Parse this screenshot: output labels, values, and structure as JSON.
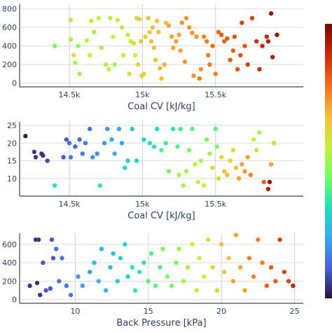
{
  "colorscale": [
    "#30123b",
    "#4662d7",
    "#36aaf9",
    "#1ae4b6",
    "#72fe5e",
    "#c8ef34",
    "#faba39",
    "#f66b19",
    "#ca2a04",
    "#7a0403"
  ],
  "chart_data": [
    {
      "type": "scatter",
      "xlabel": "Coal CV [kJ/kg]",
      "ylabel": "",
      "xlim": [
        14160,
        16100
      ],
      "ylim": [
        -40,
        850
      ],
      "xticks": [
        14500,
        15000,
        15500
      ],
      "xtick_labels": [
        "14.5k",
        "15k",
        "15.5k"
      ],
      "yticks": [
        0,
        200,
        400,
        600,
        800
      ],
      "ytick_labels": [
        "0",
        "200",
        "400",
        "600",
        "800"
      ],
      "grid": true,
      "points": [
        [
          14400,
          400,
          0.45
        ],
        [
          14510,
          680,
          0.52
        ],
        [
          14510,
          470,
          0.5
        ],
        [
          14530,
          300,
          0.55
        ],
        [
          14540,
          220,
          0.5
        ],
        [
          14560,
          400,
          0.48
        ],
        [
          14570,
          100,
          0.5
        ],
        [
          14620,
          460,
          0.55
        ],
        [
          14640,
          300,
          0.55
        ],
        [
          14650,
          670,
          0.55
        ],
        [
          14670,
          550,
          0.5
        ],
        [
          14700,
          700,
          0.55
        ],
        [
          14720,
          380,
          0.52
        ],
        [
          14750,
          200,
          0.5
        ],
        [
          14770,
          150,
          0.55
        ],
        [
          14780,
          700,
          0.52
        ],
        [
          14800,
          500,
          0.55
        ],
        [
          14810,
          200,
          0.5
        ],
        [
          14830,
          680,
          0.55
        ],
        [
          14860,
          600,
          0.58
        ],
        [
          14870,
          300,
          0.55
        ],
        [
          14900,
          520,
          0.55
        ],
        [
          14910,
          100,
          0.58
        ],
        [
          14920,
          450,
          0.55
        ],
        [
          14940,
          430,
          0.58
        ],
        [
          14950,
          300,
          0.55
        ],
        [
          14960,
          700,
          0.6
        ],
        [
          14970,
          200,
          0.6
        ],
        [
          14980,
          690,
          0.62
        ],
        [
          14990,
          450,
          0.62
        ],
        [
          14995,
          80,
          0.62
        ],
        [
          15010,
          100,
          0.62
        ],
        [
          15020,
          500,
          0.62
        ],
        [
          15040,
          700,
          0.65
        ],
        [
          15050,
          550,
          0.65
        ],
        [
          15060,
          450,
          0.65
        ],
        [
          15070,
          600,
          0.65
        ],
        [
          15080,
          380,
          0.65
        ],
        [
          15090,
          250,
          0.65
        ],
        [
          15100,
          670,
          0.65
        ],
        [
          15110,
          550,
          0.66
        ],
        [
          15120,
          160,
          0.66
        ],
        [
          15130,
          50,
          0.66
        ],
        [
          15150,
          200,
          0.68
        ],
        [
          15160,
          650,
          0.66
        ],
        [
          15180,
          620,
          0.7
        ],
        [
          15200,
          500,
          0.7
        ],
        [
          15210,
          380,
          0.7
        ],
        [
          15230,
          450,
          0.7
        ],
        [
          15250,
          520,
          0.7
        ],
        [
          15260,
          350,
          0.7
        ],
        [
          15270,
          650,
          0.72
        ],
        [
          15290,
          230,
          0.72
        ],
        [
          15300,
          700,
          0.72
        ],
        [
          15320,
          600,
          0.72
        ],
        [
          15340,
          540,
          0.72
        ],
        [
          15350,
          80,
          0.72
        ],
        [
          15370,
          500,
          0.72
        ],
        [
          15390,
          50,
          0.75
        ],
        [
          15400,
          150,
          0.72
        ],
        [
          15420,
          500,
          0.75
        ],
        [
          15440,
          450,
          0.75
        ],
        [
          15450,
          300,
          0.75
        ],
        [
          15460,
          200,
          0.75
        ],
        [
          15480,
          400,
          0.78
        ],
        [
          15500,
          100,
          0.75
        ],
        [
          15520,
          550,
          0.78
        ],
        [
          15540,
          520,
          0.8
        ],
        [
          15560,
          450,
          0.8
        ],
        [
          15580,
          480,
          0.8
        ],
        [
          15600,
          250,
          0.8
        ],
        [
          15620,
          350,
          0.8
        ],
        [
          15630,
          500,
          0.82
        ],
        [
          15650,
          150,
          0.82
        ],
        [
          15670,
          300,
          0.82
        ],
        [
          15680,
          650,
          0.85
        ],
        [
          15700,
          400,
          0.82
        ],
        [
          15720,
          200,
          0.85
        ],
        [
          15750,
          700,
          0.85
        ],
        [
          15780,
          450,
          0.88
        ],
        [
          15800,
          150,
          0.88
        ],
        [
          15820,
          400,
          0.9
        ],
        [
          15850,
          500,
          0.9
        ],
        [
          15860,
          450,
          0.92
        ],
        [
          15880,
          750,
          0.95
        ],
        [
          15890,
          280,
          0.92
        ],
        [
          15920,
          520,
          0.95
        ]
      ]
    },
    {
      "type": "scatter",
      "xlabel": "Coal CV [kJ/kg]",
      "ylabel": "",
      "xlim": [
        14160,
        16100
      ],
      "ylim": [
        5,
        26
      ],
      "xticks": [
        14500,
        15000,
        15500
      ],
      "xtick_labels": [
        "14.5k",
        "15k",
        "15.5k"
      ],
      "yticks": [
        10,
        15,
        20,
        25
      ],
      "ytick_labels": [
        "10",
        "15",
        "20",
        "25"
      ],
      "grid": true,
      "points": [
        [
          14200,
          22,
          0.02
        ],
        [
          14260,
          17.5,
          0.05
        ],
        [
          14270,
          16,
          0.05
        ],
        [
          14310,
          17,
          0.05
        ],
        [
          14320,
          16.5,
          0.05
        ],
        [
          14350,
          15,
          0.08
        ],
        [
          14400,
          8,
          0.35
        ],
        [
          14460,
          16,
          0.1
        ],
        [
          14480,
          21,
          0.1
        ],
        [
          14500,
          20,
          0.12
        ],
        [
          14510,
          16,
          0.15
        ],
        [
          14540,
          19,
          0.12
        ],
        [
          14570,
          21,
          0.12
        ],
        [
          14590,
          17,
          0.15
        ],
        [
          14610,
          20,
          0.15
        ],
        [
          14640,
          24,
          0.15
        ],
        [
          14660,
          16,
          0.18
        ],
        [
          14690,
          17,
          0.18
        ],
        [
          14710,
          8,
          0.35
        ],
        [
          14740,
          20,
          0.2
        ],
        [
          14760,
          24,
          0.2
        ],
        [
          14790,
          21,
          0.22
        ],
        [
          14810,
          17,
          0.22
        ],
        [
          14840,
          24,
          0.22
        ],
        [
          14860,
          20,
          0.22
        ],
        [
          14880,
          13,
          0.3
        ],
        [
          14900,
          15,
          0.28
        ],
        [
          14930,
          24,
          0.28
        ],
        [
          14960,
          15,
          0.3
        ],
        [
          15010,
          21,
          0.3
        ],
        [
          15050,
          20,
          0.32
        ],
        [
          15080,
          19,
          0.35
        ],
        [
          15100,
          24,
          0.32
        ],
        [
          15130,
          18,
          0.4
        ],
        [
          15160,
          20,
          0.38
        ],
        [
          15180,
          12,
          0.45
        ],
        [
          15210,
          24,
          0.35
        ],
        [
          15240,
          19,
          0.4
        ],
        [
          15250,
          11,
          0.5
        ],
        [
          15260,
          24,
          0.38
        ],
        [
          15280,
          8,
          0.5
        ],
        [
          15300,
          12,
          0.5
        ],
        [
          15320,
          18,
          0.45
        ],
        [
          15340,
          24,
          0.4
        ],
        [
          15360,
          14,
          0.55
        ],
        [
          15380,
          9,
          0.55
        ],
        [
          15400,
          15,
          0.5
        ],
        [
          15420,
          8,
          0.55
        ],
        [
          15440,
          21,
          0.45
        ],
        [
          15460,
          17,
          0.5
        ],
        [
          15480,
          13,
          0.6
        ],
        [
          15500,
          24,
          0.4
        ],
        [
          15510,
          19,
          0.45
        ],
        [
          15520,
          10,
          0.6
        ],
        [
          15540,
          16,
          0.6
        ],
        [
          15560,
          12,
          0.65
        ],
        [
          15580,
          11,
          0.65
        ],
        [
          15600,
          15,
          0.6
        ],
        [
          15620,
          18,
          0.6
        ],
        [
          15640,
          13,
          0.65
        ],
        [
          15660,
          10,
          0.7
        ],
        [
          15680,
          14,
          0.7
        ],
        [
          15700,
          12,
          0.72
        ],
        [
          15720,
          16,
          0.7
        ],
        [
          15740,
          11,
          0.75
        ],
        [
          15760,
          21,
          0.55
        ],
        [
          15780,
          18,
          0.6
        ],
        [
          15800,
          23,
          0.5
        ],
        [
          15830,
          9,
          0.8
        ],
        [
          15860,
          7,
          0.92
        ],
        [
          15870,
          9,
          0.95
        ],
        [
          15880,
          14,
          0.7
        ],
        [
          15900,
          20,
          0.6
        ]
      ]
    },
    {
      "type": "scatter",
      "xlabel": "Back Pressure [kPa]",
      "ylabel": "",
      "xlim": [
        6.2,
        25.6
      ],
      "ylim": [
        -40,
        720
      ],
      "xticks": [
        10,
        15,
        20,
        25
      ],
      "xtick_labels": [
        "10",
        "15",
        "20",
        "25"
      ],
      "yticks": [
        0,
        200,
        400,
        600
      ],
      "ytick_labels": [
        "0",
        "200",
        "400",
        "600"
      ],
      "grid": true,
      "points": [
        [
          6.9,
          150,
          0.05
        ],
        [
          7.3,
          650,
          0.05
        ],
        [
          7.4,
          180,
          0.05
        ],
        [
          7.5,
          650,
          0.05
        ],
        [
          7.6,
          50,
          0.05
        ],
        [
          7.8,
          400,
          0.1
        ],
        [
          8.0,
          100,
          0.1
        ],
        [
          8.3,
          120,
          0.1
        ],
        [
          8.4,
          650,
          0.1
        ],
        [
          8.5,
          450,
          0.1
        ],
        [
          8.7,
          550,
          0.15
        ],
        [
          8.9,
          200,
          0.15
        ],
        [
          9.1,
          450,
          0.15
        ],
        [
          9.4,
          150,
          0.15
        ],
        [
          9.7,
          50,
          0.15
        ],
        [
          10.2,
          250,
          0.2
        ],
        [
          10.5,
          150,
          0.2
        ],
        [
          11.0,
          300,
          0.2
        ],
        [
          11.3,
          400,
          0.25
        ],
        [
          11.6,
          200,
          0.25
        ],
        [
          11.8,
          550,
          0.25
        ],
        [
          12.1,
          100,
          0.25
        ],
        [
          12.4,
          350,
          0.25
        ],
        [
          12.6,
          500,
          0.25
        ],
        [
          12.9,
          200,
          0.3
        ],
        [
          13.1,
          450,
          0.3
        ],
        [
          13.4,
          600,
          0.3
        ],
        [
          13.6,
          250,
          0.3
        ],
        [
          13.9,
          350,
          0.35
        ],
        [
          14.1,
          100,
          0.35
        ],
        [
          14.4,
          300,
          0.35
        ],
        [
          14.7,
          400,
          0.35
        ],
        [
          15.0,
          200,
          0.4
        ],
        [
          15.2,
          500,
          0.4
        ],
        [
          15.5,
          150,
          0.4
        ],
        [
          15.8,
          350,
          0.4
        ],
        [
          16.0,
          550,
          0.45
        ],
        [
          16.3,
          250,
          0.45
        ],
        [
          16.6,
          150,
          0.45
        ],
        [
          16.9,
          400,
          0.45
        ],
        [
          17.1,
          550,
          0.5
        ],
        [
          17.4,
          200,
          0.5
        ],
        [
          17.7,
          350,
          0.5
        ],
        [
          18.0,
          600,
          0.55
        ],
        [
          18.3,
          100,
          0.55
        ],
        [
          18.5,
          450,
          0.55
        ],
        [
          18.8,
          250,
          0.55
        ],
        [
          19.1,
          650,
          0.6
        ],
        [
          19.4,
          350,
          0.6
        ],
        [
          19.7,
          100,
          0.6
        ],
        [
          20.0,
          600,
          0.65
        ],
        [
          20.2,
          300,
          0.65
        ],
        [
          20.5,
          450,
          0.65
        ],
        [
          20.8,
          200,
          0.7
        ],
        [
          21.0,
          700,
          0.7
        ],
        [
          21.3,
          350,
          0.7
        ],
        [
          21.6,
          100,
          0.7
        ],
        [
          21.9,
          450,
          0.75
        ],
        [
          22.2,
          250,
          0.75
        ],
        [
          22.5,
          650,
          0.75
        ],
        [
          22.8,
          400,
          0.75
        ],
        [
          23.1,
          150,
          0.8
        ],
        [
          23.4,
          350,
          0.8
        ],
        [
          23.7,
          200,
          0.8
        ],
        [
          24.0,
          650,
          0.85
        ],
        [
          24.3,
          300,
          0.85
        ],
        [
          24.6,
          200,
          0.85
        ],
        [
          24.9,
          150,
          0.9
        ]
      ]
    }
  ]
}
